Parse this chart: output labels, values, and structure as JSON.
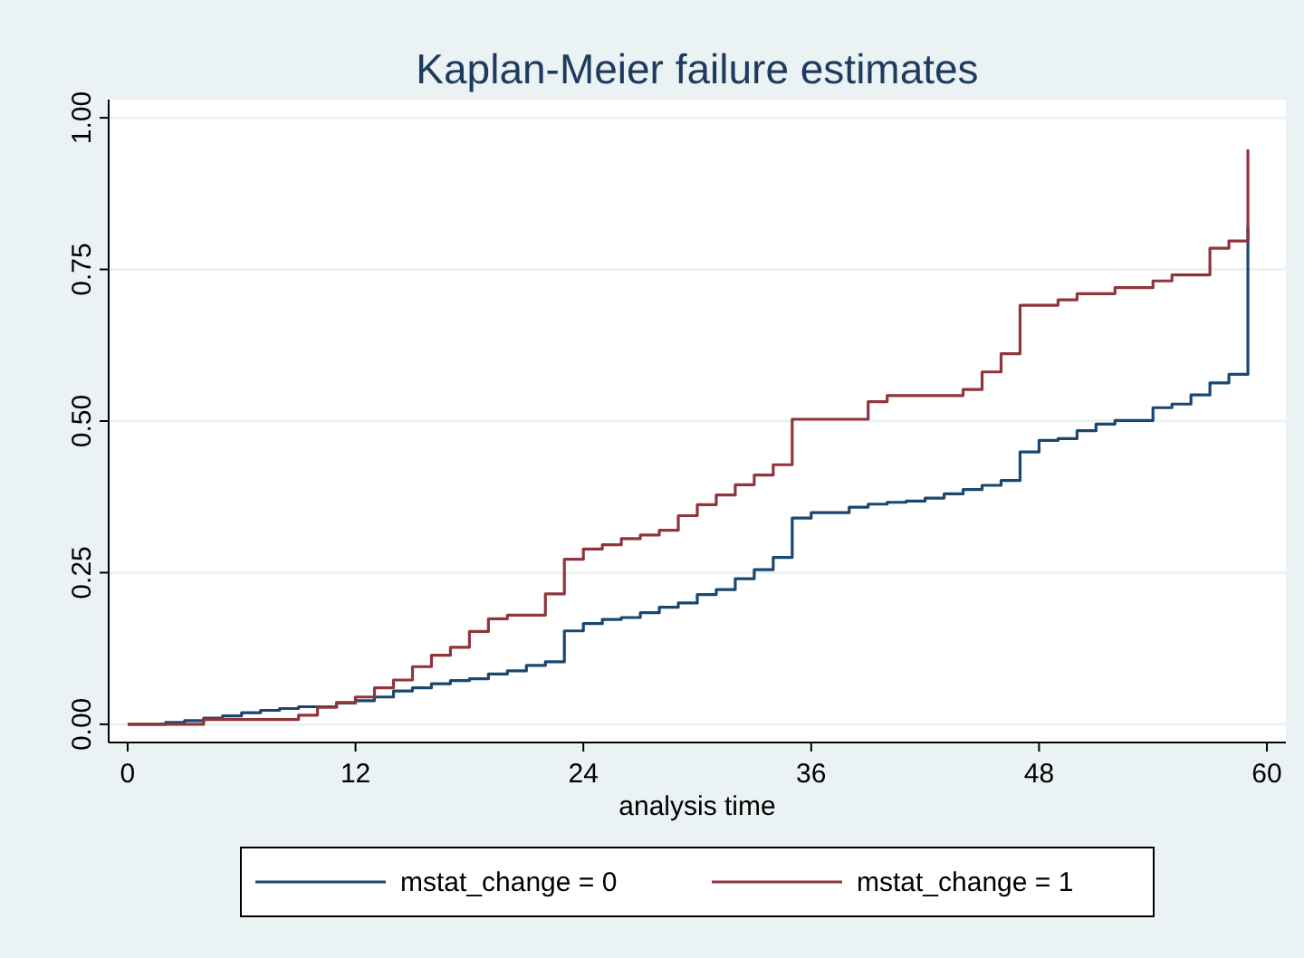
{
  "chart_data": {
    "type": "step",
    "title": "Kaplan-Meier failure estimates",
    "xlabel": "analysis time",
    "xlim": [
      -1,
      61
    ],
    "xticks": [
      0,
      12,
      24,
      36,
      48,
      60
    ],
    "ylim": [
      -0.03,
      1.03
    ],
    "yticks": [
      {
        "value": 0,
        "label": "0.00"
      },
      {
        "value": 0.25,
        "label": "0.25"
      },
      {
        "value": 0.5,
        "label": "0.50"
      },
      {
        "value": 0.75,
        "label": "0.75"
      },
      {
        "value": 1,
        "label": "1.00"
      }
    ],
    "grid": "y",
    "legend": "bottom",
    "line_style": "solid",
    "marker": "none",
    "series": [
      {
        "name": "mstat_change = 0",
        "color": "#1a476f",
        "x": [
          0,
          2,
          3,
          4,
          5,
          6,
          7,
          8,
          9,
          11,
          12,
          13,
          14,
          15,
          16,
          17,
          18,
          19,
          20,
          21,
          22,
          23,
          24,
          25,
          26,
          27,
          28,
          29,
          30,
          31,
          32,
          33,
          34,
          35,
          36,
          38,
          39,
          40,
          41,
          42,
          43,
          44,
          45,
          46,
          47,
          48,
          49,
          50,
          51,
          52,
          54,
          55,
          56,
          57,
          58,
          59
        ],
        "values": [
          0,
          0.003,
          0.006,
          0.01,
          0.014,
          0.019,
          0.023,
          0.026,
          0.029,
          0.035,
          0.039,
          0.045,
          0.055,
          0.06,
          0.067,
          0.072,
          0.075,
          0.083,
          0.088,
          0.097,
          0.103,
          0.154,
          0.166,
          0.173,
          0.176,
          0.184,
          0.193,
          0.2,
          0.214,
          0.222,
          0.24,
          0.255,
          0.275,
          0.34,
          0.349,
          0.358,
          0.363,
          0.366,
          0.368,
          0.373,
          0.38,
          0.387,
          0.394,
          0.402,
          0.449,
          0.468,
          0.471,
          0.484,
          0.495,
          0.501,
          0.522,
          0.528,
          0.543,
          0.563,
          0.577,
          0.82
        ]
      },
      {
        "name": "mstat_change = 1",
        "color": "#90353b",
        "x": [
          0,
          4,
          9,
          10,
          11,
          12,
          13,
          14,
          15,
          16,
          17,
          18,
          19,
          20,
          22,
          23,
          24,
          25,
          26,
          27,
          28,
          29,
          30,
          31,
          32,
          33,
          34,
          35,
          39,
          40,
          44,
          45,
          46,
          47,
          49,
          50,
          52,
          54,
          55,
          57,
          58,
          59
        ],
        "values": [
          0,
          0.008,
          0.015,
          0.028,
          0.036,
          0.045,
          0.06,
          0.073,
          0.095,
          0.114,
          0.127,
          0.153,
          0.174,
          0.18,
          0.215,
          0.272,
          0.289,
          0.296,
          0.306,
          0.312,
          0.32,
          0.344,
          0.362,
          0.378,
          0.395,
          0.411,
          0.428,
          0.503,
          0.532,
          0.542,
          0.552,
          0.581,
          0.611,
          0.691,
          0.7,
          0.71,
          0.72,
          0.731,
          0.741,
          0.785,
          0.797,
          0.948
        ]
      }
    ]
  }
}
